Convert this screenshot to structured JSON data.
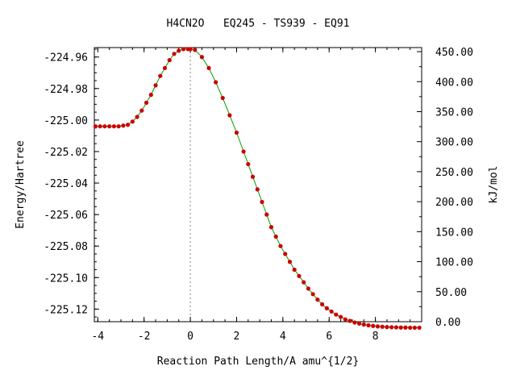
{
  "chart_data": {
    "type": "line",
    "title": "H4CN2O   EQ245 - TS939 - EQ91",
    "xlabel": "Reaction Path Length/A amu^{1/2}",
    "ylabel": "Energy/Hartree",
    "y2label": "kJ/mol",
    "xlim": [
      -4.15,
      10.0
    ],
    "ylim": [
      -225.128,
      -224.954
    ],
    "y2lim": [
      0.0,
      456.8
    ],
    "x_ticks": [
      -4,
      -2,
      0,
      2,
      4,
      6,
      8
    ],
    "y_ticks": [
      -224.96,
      -224.98,
      -225.0,
      -225.02,
      -225.04,
      -225.06,
      -225.08,
      -225.1,
      -225.12
    ],
    "y2_ticks": [
      0,
      50,
      100,
      150,
      200,
      250,
      300,
      350,
      400,
      450
    ],
    "x_tick_labels": [
      "-4",
      "-2",
      "0",
      "2",
      "4",
      "6",
      "8"
    ],
    "y_tick_labels": [
      "-224.96",
      "-224.98",
      "-225.00",
      "-225.02",
      "-225.04",
      "-225.06",
      "-225.08",
      "-225.10",
      "-225.12"
    ],
    "y2_tick_labels": [
      "0.00",
      "50.00",
      "100.00",
      "150.00",
      "200.00",
      "250.00",
      "300.00",
      "350.00",
      "400.00",
      "450.00"
    ],
    "ts_x": 0.0,
    "grid": false,
    "line_color": "#00a000",
    "marker_color": "#cc0000",
    "ts_line_color": "#888888",
    "series": [
      {
        "x": [
          -4.1,
          -3.9,
          -3.7,
          -3.5,
          -3.3,
          -3.1,
          -2.9,
          -2.7,
          -2.5,
          -2.3,
          -2.1,
          -1.9,
          -1.7,
          -1.5,
          -1.3,
          -1.1,
          -0.9,
          -0.7,
          -0.5,
          -0.3,
          -0.1,
          0.0,
          0.2,
          0.5,
          0.8,
          1.1,
          1.4,
          1.7,
          2.0,
          2.3,
          2.5,
          2.7,
          2.9,
          3.1,
          3.3,
          3.5,
          3.7,
          3.9,
          4.1,
          4.3,
          4.5,
          4.7,
          4.9,
          5.1,
          5.3,
          5.5,
          5.7,
          5.9,
          6.1,
          6.3,
          6.5,
          6.7,
          6.9,
          7.1,
          7.3,
          7.5,
          7.7,
          7.9,
          8.1,
          8.3,
          8.5,
          8.7,
          8.9,
          9.1,
          9.3,
          9.5,
          9.7,
          9.9
        ],
        "y": [
          -225.004,
          -225.004,
          -225.004,
          -225.004,
          -225.004,
          -225.004,
          -225.0035,
          -225.003,
          -225.001,
          -224.998,
          -224.994,
          -224.989,
          -224.984,
          -224.978,
          -224.972,
          -224.967,
          -224.962,
          -224.958,
          -224.956,
          -224.955,
          -224.955,
          -224.955,
          -224.9555,
          -224.96,
          -224.967,
          -224.976,
          -224.986,
          -224.997,
          -225.008,
          -225.02,
          -225.028,
          -225.036,
          -225.044,
          -225.052,
          -225.06,
          -225.068,
          -225.074,
          -225.08,
          -225.085,
          -225.09,
          -225.095,
          -225.099,
          -225.103,
          -225.107,
          -225.1105,
          -225.114,
          -225.117,
          -225.1195,
          -225.1215,
          -225.1235,
          -225.125,
          -225.1265,
          -225.1275,
          -225.1285,
          -225.1292,
          -225.1298,
          -225.1303,
          -225.1307,
          -225.131,
          -225.1312,
          -225.1314,
          -225.1315,
          -225.1316,
          -225.1317,
          -225.1317,
          -225.1318,
          -225.1318,
          -225.1318
        ]
      }
    ]
  }
}
